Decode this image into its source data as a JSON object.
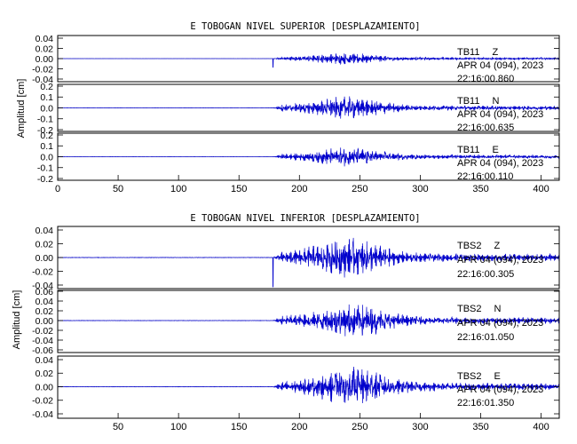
{
  "chart_data": [
    {
      "type": "line",
      "title": "E TOBOGAN NIVEL SUPERIOR [DESPLAZAMIENTO]",
      "ylabel": "Amplitud [cm]",
      "xlim": [
        0,
        415
      ],
      "xticks": [
        "0",
        "50",
        "100",
        "150",
        "200",
        "250",
        "300",
        "350",
        "400"
      ],
      "traces": [
        {
          "station": "TB11",
          "component": "Z",
          "date": "APR 04 (094), 2023",
          "time": "22:16:00.860",
          "ylim": [
            -0.045,
            0.045
          ],
          "yticks": [
            "0.04",
            "0.02",
            "0.00",
            "-0.02",
            "-0.04"
          ],
          "onset": 178,
          "peak_time": 240,
          "peak_amp": 0.012,
          "color": "#0000cc"
        },
        {
          "station": "TB11",
          "component": "N",
          "date": "APR 04 (094), 2023",
          "time": "22:16:00.635",
          "ylim": [
            -0.22,
            0.22
          ],
          "yticks": [
            "0.2",
            "0.1",
            "0.0",
            "-0.1",
            "-0.2"
          ],
          "onset": 178,
          "peak_time": 240,
          "peak_amp": 0.11,
          "color": "#0000cc"
        },
        {
          "station": "TB11",
          "component": "E",
          "date": "APR 04 (094), 2023",
          "time": "22:16:00.110",
          "ylim": [
            -0.22,
            0.22
          ],
          "yticks": [
            "0.2",
            "0.1",
            "0.0",
            "-0.1",
            "-0.2"
          ],
          "onset": 178,
          "peak_time": 240,
          "peak_amp": 0.09,
          "color": "#0000cc"
        }
      ]
    },
    {
      "type": "line",
      "title": "E TOBOGAN NIVEL INFERIOR [DESPLAZAMIENTO]",
      "ylabel": "Amplitud [cm]",
      "xlim": [
        0,
        415
      ],
      "xticks": [
        "50",
        "100",
        "150",
        "200",
        "250",
        "300",
        "350",
        "400"
      ],
      "traces": [
        {
          "station": "TBS2",
          "component": "Z",
          "date": "APR 04 (094), 2023",
          "time": "22:16:00.305",
          "ylim": [
            -0.045,
            0.045
          ],
          "yticks": [
            "0.04",
            "0.02",
            "0.00",
            "-0.02",
            "-0.04"
          ],
          "onset": 178,
          "peak_time": 240,
          "peak_amp": 0.03,
          "color": "#0000cc"
        },
        {
          "station": "TBS2",
          "component": "N",
          "date": "APR 04 (094), 2023",
          "time": "22:16:01.050",
          "ylim": [
            -0.065,
            0.065
          ],
          "yticks": [
            "0.06",
            "0.04",
            "0.02",
            "0.00",
            "-0.02",
            "-0.04",
            "-0.06"
          ],
          "onset": 178,
          "peak_time": 245,
          "peak_amp": 0.035,
          "color": "#0000cc"
        },
        {
          "station": "TBS2",
          "component": "E",
          "date": "APR 04 (094), 2023",
          "time": "22:16:01.350",
          "ylim": [
            -0.045,
            0.045
          ],
          "yticks": [
            "0.04",
            "0.02",
            "0.00",
            "-0.02",
            "-0.04"
          ],
          "onset": 178,
          "peak_time": 245,
          "peak_amp": 0.03,
          "color": "#0000cc"
        }
      ]
    }
  ]
}
